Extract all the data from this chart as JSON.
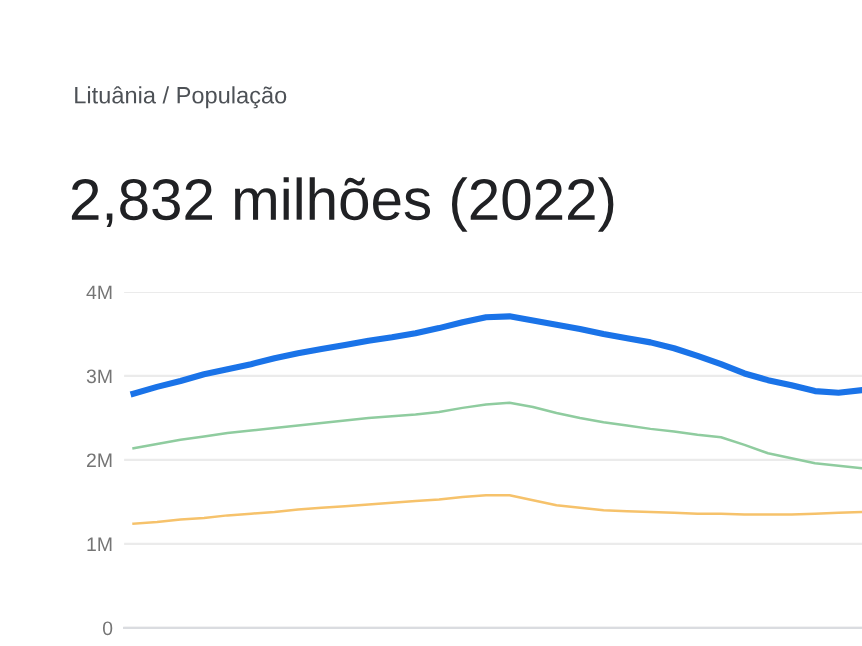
{
  "chart_data": {
    "type": "line",
    "title": "2,832 milhões (2022)",
    "subtitle": "Lituânia / População",
    "categories": [
      null,
      null,
      null,
      null,
      null,
      null,
      null,
      null,
      null,
      null,
      null,
      null,
      null,
      null,
      null,
      null,
      null,
      null,
      null,
      null,
      null,
      null,
      null,
      null,
      null,
      null,
      null,
      null,
      null,
      null,
      null,
      null
    ],
    "series": [
      {
        "color": "#1a73e8",
        "values": [
          2.79,
          2.87,
          2.94,
          3.02,
          3.08,
          3.14,
          3.21,
          3.27,
          3.32,
          3.37,
          3.42,
          3.46,
          3.51,
          3.57,
          3.64,
          3.7,
          3.71,
          3.66,
          3.61,
          3.56,
          3.5,
          3.45,
          3.4,
          3.33,
          3.24,
          3.14,
          3.03,
          2.95,
          2.89,
          2.82,
          2.8,
          2.832
        ]
      },
      {
        "color": "#8fcc9f",
        "values": [
          2.14,
          2.19,
          2.24,
          2.28,
          2.32,
          2.35,
          2.38,
          2.41,
          2.44,
          2.47,
          2.5,
          2.52,
          2.54,
          2.57,
          2.62,
          2.66,
          2.68,
          2.63,
          2.56,
          2.5,
          2.45,
          2.41,
          2.37,
          2.34,
          2.3,
          2.27,
          2.18,
          2.08,
          2.02,
          1.96,
          1.93,
          1.9
        ]
      },
      {
        "color": "#f6c26b",
        "values": [
          1.24,
          1.26,
          1.29,
          1.31,
          1.34,
          1.36,
          1.38,
          1.41,
          1.43,
          1.45,
          1.47,
          1.49,
          1.51,
          1.53,
          1.56,
          1.58,
          1.58,
          1.52,
          1.46,
          1.43,
          1.4,
          1.39,
          1.38,
          1.37,
          1.36,
          1.36,
          1.35,
          1.35,
          1.35,
          1.36,
          1.37,
          1.38
        ]
      }
    ],
    "ylim": [
      0,
      4
    ],
    "yticks": [
      0,
      {
        "value": 1,
        "label": "1M"
      },
      {
        "value": 2,
        "label": "2M"
      },
      {
        "value": 3,
        "label": "3M"
      },
      {
        "value": 4,
        "label": "4M"
      }
    ],
    "grid": "y",
    "line_style": "solid"
  }
}
